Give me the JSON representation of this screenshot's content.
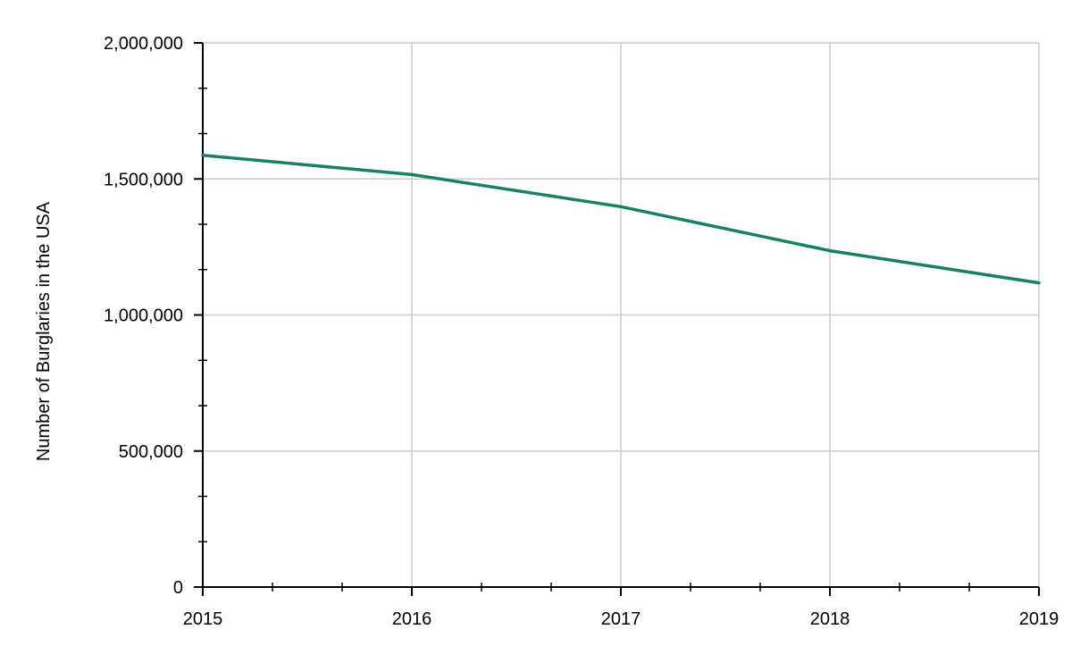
{
  "chart_data": {
    "type": "line",
    "title": "",
    "xlabel": "",
    "ylabel": "Number of Burglaries in the USA",
    "x": [
      2015,
      2016,
      2017,
      2018,
      2019
    ],
    "x_tick_labels": [
      "2015",
      "2016",
      "2017",
      "2018",
      "2019"
    ],
    "y_ticks": [
      0,
      500000,
      1000000,
      1500000,
      2000000
    ],
    "y_tick_labels": [
      "0",
      "500,000",
      "1,000,000",
      "1,500,000",
      "2,000,000"
    ],
    "ylim": [
      0,
      2000000
    ],
    "xlim": [
      2015,
      2019
    ],
    "grid": true,
    "series": [
      {
        "values": [
          1587000,
          1516000,
          1398000,
          1236000,
          1118000
        ],
        "color": "#1a7f64"
      }
    ]
  }
}
